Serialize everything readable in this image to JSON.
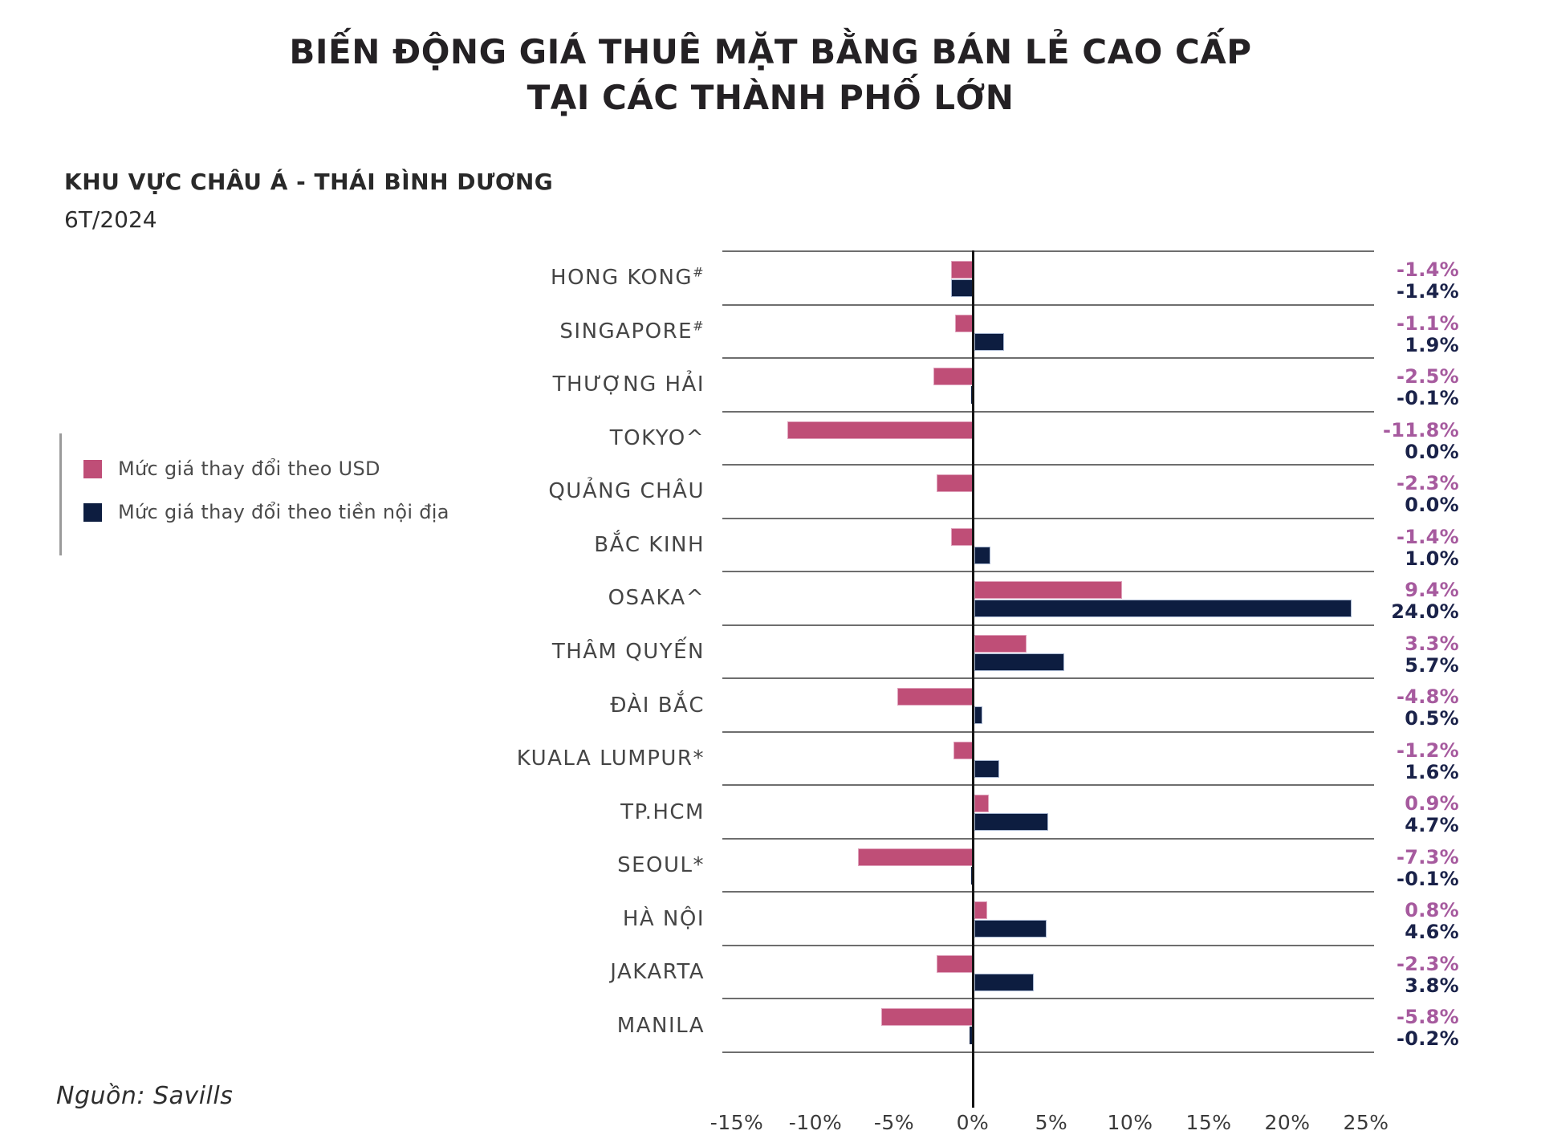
{
  "header": {
    "title_line1": "BIẾN ĐỘNG GIÁ THUÊ MẶT BẰNG BÁN LẺ CAO CẤP",
    "title_line2": "TẠI CÁC THÀNH PHỐ LỚN",
    "subtitle": "KHU VỰC CHÂU Á - THÁI BÌNH DƯƠNG",
    "period": "6T/2024"
  },
  "legend": {
    "items": [
      {
        "label": "Mức giá thay đổi theo USD",
        "color": "#bf4e77"
      },
      {
        "label": "Mức giá thay đổi theo tiền nội địa",
        "color": "#0d1d40"
      }
    ]
  },
  "source": "Nguồn: Savills",
  "chart_data": {
    "type": "bar",
    "orientation": "horizontal",
    "title": "BIẾN ĐỘNG GIÁ THUÊ MẶT BẰNG BÁN LẺ CAO CẤP TẠI CÁC THÀNH PHỐ LỚN",
    "subtitle": "KHU VỰC CHÂU Á - THÁI BÌNH DƯƠNG",
    "period": "6T/2024",
    "unit": "%",
    "grid": "horizontal-row-separators",
    "legend_position": "left",
    "cities": [
      {
        "name": "HONG KONG",
        "marker": "#"
      },
      {
        "name": "SINGAPORE",
        "marker": "#"
      },
      {
        "name": "THƯỢNG HẢI",
        "marker": ""
      },
      {
        "name": "TOKYO",
        "marker": "^"
      },
      {
        "name": "QUẢNG CHÂU",
        "marker": ""
      },
      {
        "name": "BẮC KINH",
        "marker": ""
      },
      {
        "name": "OSAKA",
        "marker": "^"
      },
      {
        "name": "THÂM QUYẾN",
        "marker": ""
      },
      {
        "name": "ĐÀI BẮC",
        "marker": ""
      },
      {
        "name": "KUALA LUMPUR",
        "marker": "*"
      },
      {
        "name": "TP.HCM",
        "marker": ""
      },
      {
        "name": "SEOUL",
        "marker": "*"
      },
      {
        "name": "HÀ NỘI",
        "marker": ""
      },
      {
        "name": "JAKARTA",
        "marker": ""
      },
      {
        "name": "MANILA",
        "marker": ""
      }
    ],
    "categories": [
      "HONG KONG#",
      "SINGAPORE#",
      "THƯỢNG HẢI",
      "TOKYO^",
      "QUẢNG CHÂU",
      "BẮC KINH",
      "OSAKA^",
      "THÂM QUYẾN",
      "ĐÀI BẮC",
      "KUALA LUMPUR*",
      "TP.HCM",
      "SEOUL*",
      "HÀ NỘI",
      "JAKARTA",
      "MANILA"
    ],
    "series": [
      {
        "name": "Mức giá thay đổi theo USD",
        "color": "#bf4e77",
        "values": [
          -1.4,
          -1.1,
          -2.5,
          -11.8,
          -2.3,
          -1.4,
          9.4,
          3.3,
          -4.8,
          -1.2,
          0.9,
          -7.3,
          0.8,
          -2.3,
          -5.8
        ],
        "labels": [
          "-1.4%",
          "-1.1%",
          "-2.5%",
          "-11.8%",
          "-2.3%",
          "-1.4%",
          "9.4%",
          "3.3%",
          "-4.8%",
          "-1.2%",
          "0.9%",
          "-7.3%",
          "0.8%",
          "-2.3%",
          "-5.8%"
        ]
      },
      {
        "name": "Mức giá thay đổi theo tiền nội địa",
        "color": "#0d1d40",
        "values": [
          -1.4,
          1.9,
          -0.1,
          0.0,
          0.0,
          1.0,
          24.0,
          5.7,
          0.5,
          1.6,
          4.7,
          -0.1,
          4.6,
          3.8,
          -0.2
        ],
        "labels": [
          "-1.4%",
          "1.9%",
          "-0.1%",
          "0.0%",
          "0.0%",
          "1.0%",
          "24.0%",
          "5.7%",
          "0.5%",
          "1.6%",
          "4.7%",
          "-0.1%",
          "4.6%",
          "3.8%",
          "-0.2%"
        ]
      }
    ],
    "x_axis": {
      "ticks": [
        "-15%",
        "-10%",
        "-5%",
        "0%",
        "5%",
        "10%",
        "15%",
        "20%",
        "25%"
      ],
      "tick_values": [
        -15,
        -10,
        -5,
        0,
        5,
        10,
        15,
        20,
        25
      ],
      "range": [
        -16,
        26
      ]
    }
  }
}
